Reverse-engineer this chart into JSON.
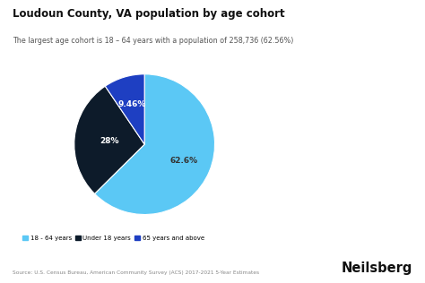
{
  "title": "Loudoun County, VA population by age cohort",
  "subtitle": "The largest age cohort is 18 – 64 years with a population of 258,736 (62.56%)",
  "slices": [
    62.6,
    28.0,
    9.46
  ],
  "labels": [
    "18 - 64 years",
    "Under 18 years",
    "65 years and above"
  ],
  "colors": [
    "#5BC8F5",
    "#0D1B2A",
    "#1E3FC2"
  ],
  "pct_labels": [
    "62.6%",
    "28%",
    "9.46%"
  ],
  "pct_label_colors": [
    "#333333",
    "#ffffff",
    "#ffffff"
  ],
  "pct_label_offsets": [
    0.6,
    0.5,
    0.6
  ],
  "source": "Source: U.S. Census Bureau, American Community Survey (ACS) 2017-2021 5-Year Estimates",
  "brand": "Neilsberg",
  "background_color": "#ffffff",
  "startangle": 90
}
